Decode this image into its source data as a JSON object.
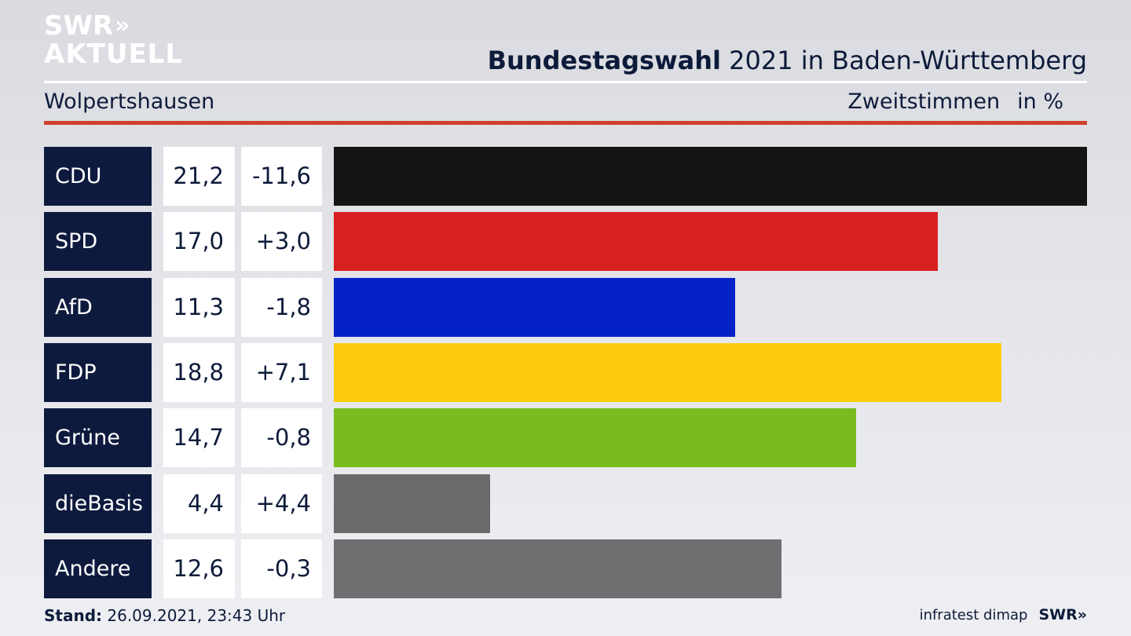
{
  "logo": {
    "line1": "SWR",
    "chevrons": "»",
    "line2": "AKTUELL"
  },
  "header": {
    "title_bold": "Bundestagswahl",
    "title_rest": " 2021 in Baden-Württemberg",
    "location": "Wolpertshausen",
    "measure": "Zweitstimmen",
    "unit": "in %"
  },
  "chart_data": {
    "type": "bar",
    "orientation": "horizontal",
    "categories": [
      "CDU",
      "SPD",
      "AfD",
      "FDP",
      "Grüne",
      "dieBasis",
      "Andere"
    ],
    "values": [
      21.2,
      17.0,
      11.3,
      18.8,
      14.7,
      4.4,
      12.6
    ],
    "values_text": [
      "21,2",
      "17,0",
      "11,3",
      "18,8",
      "14,7",
      "4,4",
      "12,6"
    ],
    "changes_text": [
      "-11,6",
      "+3,0",
      "-1,8",
      "+7,1",
      "-0,8",
      "+4,4",
      "-0,3"
    ],
    "colors": [
      "#141414",
      "#d92020",
      "#0422c8",
      "#fdcc0c",
      "#78bd1d",
      "#6a6a6a",
      "#6e6f71"
    ],
    "xlim": [
      0,
      21.2
    ]
  },
  "footer": {
    "stand_label": "Stand:",
    "stand_value": " 26.09.2021, 23:43 Uhr",
    "source": "infratest dimap",
    "brand": "SWR»"
  }
}
